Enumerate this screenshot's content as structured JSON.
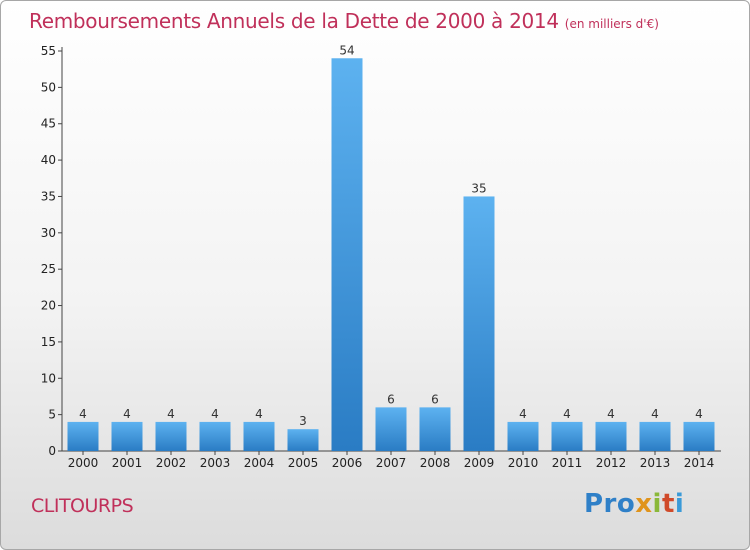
{
  "chart_data": {
    "type": "bar",
    "title": "Remboursements Annuels de la Dette de 2000 à 2014",
    "unit": "(en milliers d'€)",
    "categories": [
      "2000",
      "2001",
      "2002",
      "2003",
      "2004",
      "2005",
      "2006",
      "2007",
      "2008",
      "2009",
      "2010",
      "2011",
      "2012",
      "2013",
      "2014"
    ],
    "values": [
      4,
      4,
      4,
      4,
      4,
      3,
      54,
      6,
      6,
      35,
      4,
      4,
      4,
      4,
      4
    ],
    "ylim": [
      0,
      55
    ],
    "yticks": [
      0,
      5,
      10,
      15,
      20,
      25,
      30,
      35,
      40,
      45,
      50,
      55
    ],
    "grid": false,
    "data_labels": true,
    "bar_color": "#3a8ed8"
  },
  "footer": {
    "commune": "CLITOURPS",
    "logo": [
      "Pro",
      "x",
      "i",
      "t",
      "i"
    ]
  }
}
